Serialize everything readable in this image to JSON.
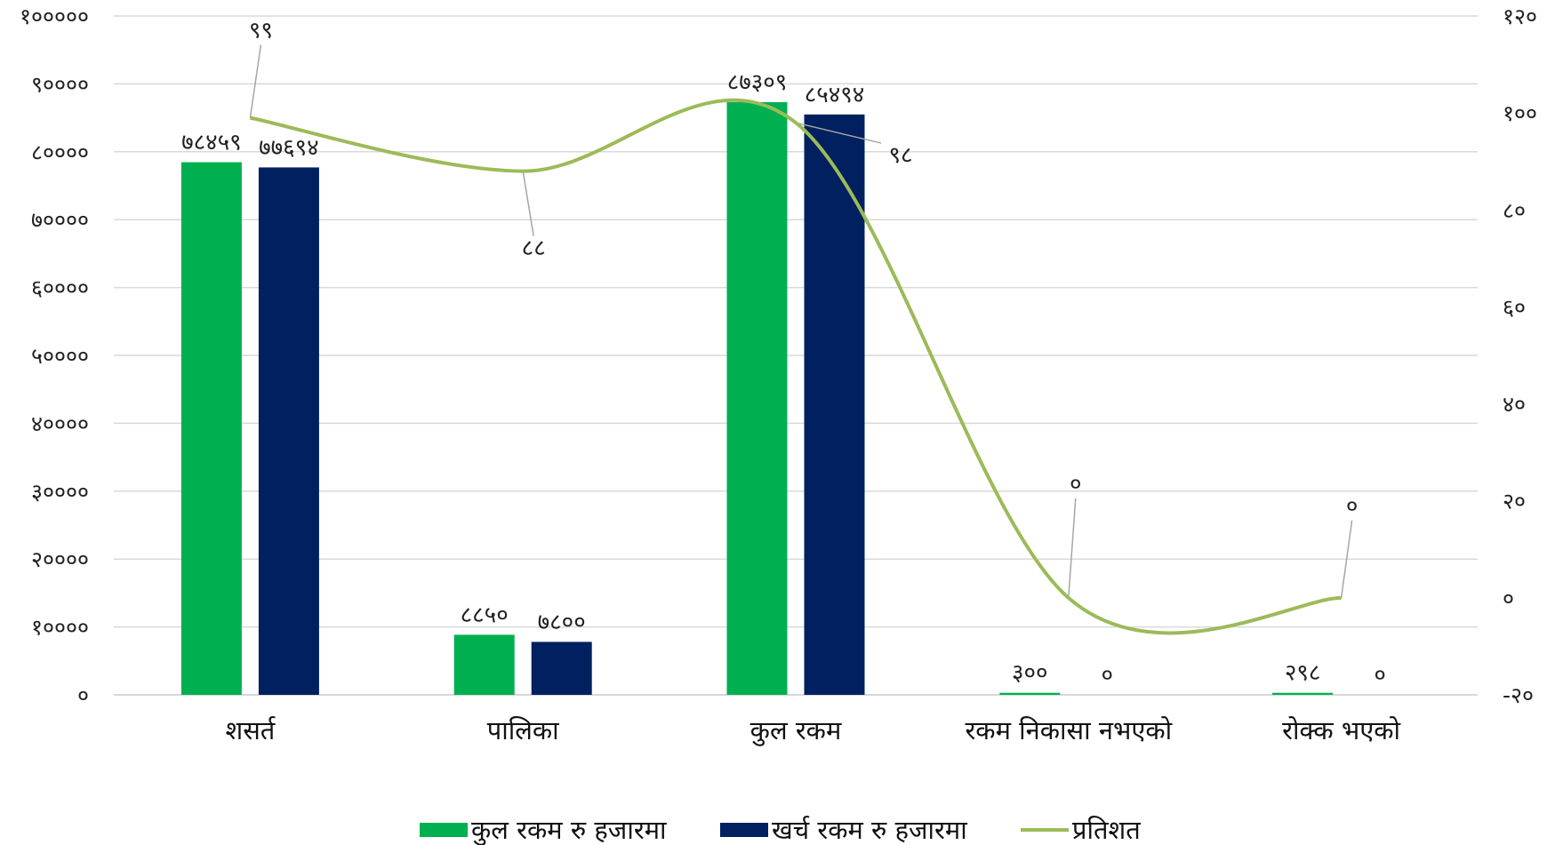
{
  "chart_data": {
    "type": "bar",
    "categories": [
      "शसर्त",
      "पालिका",
      "कुल रकम",
      "रकम निकासा नभएको",
      "रोक्क भएको"
    ],
    "series": [
      {
        "name": "कुल रकम रु हजारमा",
        "kind": "bar",
        "axis": "left",
        "color": "#00b050",
        "values": [
          78459,
          8850,
          87309,
          300,
          298
        ],
        "labels": [
          "७८४५९",
          "८८५०",
          "८७३०९",
          "३००",
          "२९८"
        ]
      },
      {
        "name": "खर्च रकम रु हजारमा",
        "kind": "bar",
        "axis": "left",
        "color": "#002060",
        "values": [
          77694,
          7800,
          85494,
          0,
          0
        ],
        "labels": [
          "७७६९४",
          "७८००",
          "८५४९४",
          "०",
          "०"
        ]
      },
      {
        "name": "प्रतिशत",
        "kind": "line",
        "axis": "right",
        "smooth": true,
        "color": "#9bbb59",
        "values": [
          99,
          88,
          98,
          0,
          0
        ],
        "labels": [
          "९९",
          "८८",
          "९८",
          "०",
          "०"
        ]
      }
    ],
    "y_left": {
      "min": 0,
      "max": 100000,
      "ticks": [
        0,
        10000,
        20000,
        30000,
        40000,
        50000,
        60000,
        70000,
        80000,
        90000,
        100000
      ],
      "tick_labels": [
        "०",
        "१००००",
        "२००००",
        "३००००",
        "४००००",
        "५००००",
        "६००००",
        "७००००",
        "८००००",
        "९००००",
        "१०००००"
      ]
    },
    "y_right": {
      "min": -20,
      "max": 120,
      "ticks": [
        -20,
        0,
        20,
        40,
        60,
        80,
        100,
        120
      ],
      "tick_labels": [
        "-२०",
        "०",
        "२०",
        "४०",
        "६०",
        "८०",
        "१००",
        "१२०"
      ]
    },
    "grid": true,
    "legend": "bottom"
  }
}
